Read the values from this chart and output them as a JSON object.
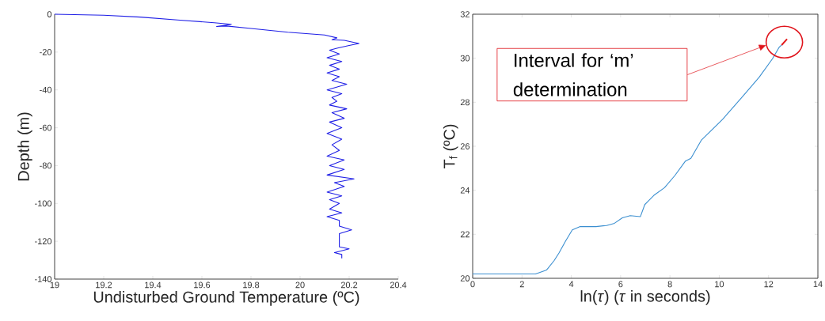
{
  "chart_data": [
    {
      "type": "line",
      "xlabel": "Undisturbed Ground Temperature (ºC)",
      "ylabel": "Depth (m)",
      "color": "#1f1fe6",
      "x": [
        19,
        19.2,
        19.35,
        19.5,
        19.65,
        19.72,
        19.66,
        19.7,
        19.8,
        19.95,
        20.1,
        20.15,
        20.13,
        20.18,
        20.24,
        20.2,
        20.15,
        20.12,
        20.16,
        20.11,
        20.17,
        20.12,
        20.16,
        20.11,
        20.16,
        20.13,
        20.19,
        20.11,
        20.17,
        20.13,
        20.15,
        20.12,
        20.19,
        20.13,
        20.18,
        20.12,
        20.17,
        20.11,
        20.17,
        20.13,
        20.16,
        20.11,
        20.18,
        20.12,
        20.18,
        20.11,
        20.22,
        20.14,
        20.18,
        20.11,
        20.17,
        20.12,
        20.16,
        20.12,
        20.17,
        20.11,
        20.16,
        20.16,
        20.21,
        20.16,
        20.16,
        20.2,
        20.14,
        20.17,
        20.17
      ],
      "values": [
        0,
        -0.5,
        -1.5,
        -3,
        -4.5,
        -5.3,
        -6.5,
        -6.2,
        -7.5,
        -9.5,
        -11,
        -12.5,
        -13.5,
        -13.8,
        -15.5,
        -16.5,
        -18,
        -19,
        -21,
        -23,
        -25,
        -27,
        -29,
        -31,
        -33,
        -35,
        -37,
        -40,
        -42,
        -44,
        -46,
        -48,
        -50,
        -52,
        -55,
        -57,
        -60,
        -63,
        -66,
        -69,
        -72,
        -75,
        -77,
        -80,
        -82,
        -85,
        -87,
        -89,
        -91,
        -94,
        -96,
        -98,
        -100,
        -103,
        -105,
        -107,
        -109,
        -112,
        -114,
        -116,
        -123,
        -124,
        -126,
        -127,
        -129
      ],
      "xlim": [
        19,
        20.4
      ],
      "ylim": [
        -140,
        0
      ],
      "xticks": [
        19,
        19.2,
        19.4,
        19.6,
        19.8,
        20,
        20.2,
        20.4
      ],
      "yticks": [
        -140,
        -120,
        -100,
        -80,
        -60,
        -40,
        -20,
        0
      ]
    },
    {
      "type": "line",
      "xlabel": "ln(*τ*)  (*τ* in seconds)",
      "ylabel": "T$_{f}$ (ºC)",
      "series": [
        {
          "color": "#3b8fd0",
          "x": [
            0,
            2.55,
            3.0,
            3.3,
            3.5,
            3.77,
            4.04,
            4.36,
            5.0,
            5.43,
            5.75,
            6.07,
            6.39,
            6.8,
            6.98,
            7.35,
            7.78,
            8.2,
            8.63,
            8.85,
            9.27,
            10.13,
            10.98,
            11.62,
            12.16,
            12.43,
            12.53
          ],
          "values": [
            20.2,
            20.2,
            20.38,
            20.8,
            21.15,
            21.7,
            22.2,
            22.35,
            22.35,
            22.4,
            22.5,
            22.75,
            22.85,
            22.8,
            23.35,
            23.77,
            24.12,
            24.67,
            25.33,
            25.45,
            26.27,
            27.22,
            28.3,
            29.14,
            29.98,
            30.5,
            30.6
          ]
        },
        {
          "color": "#e31a1c",
          "x": [
            12.53,
            12.75
          ],
          "values": [
            30.6,
            30.87
          ]
        }
      ],
      "annotations": [
        "Interval for ‘m’ determination"
      ],
      "xlim": [
        0,
        14
      ],
      "ylim": [
        20,
        32
      ],
      "xticks": [
        0,
        2,
        4,
        6,
        8,
        10,
        12,
        14
      ],
      "yticks": [
        20,
        22,
        24,
        26,
        28,
        30,
        32
      ]
    }
  ]
}
